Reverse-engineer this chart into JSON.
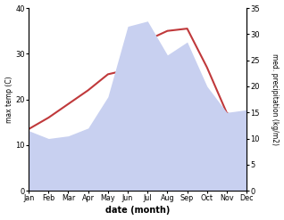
{
  "months": [
    "Jan",
    "Feb",
    "Mar",
    "Apr",
    "May",
    "Jun",
    "Jul",
    "Aug",
    "Sep",
    "Oct",
    "Nov",
    "Dec"
  ],
  "temp": [
    13.5,
    16.0,
    19.0,
    22.0,
    25.5,
    26.5,
    33.0,
    35.0,
    35.5,
    27.0,
    17.0,
    15.0
  ],
  "precip": [
    11.5,
    10.0,
    10.5,
    12.0,
    18.0,
    31.5,
    32.5,
    26.0,
    28.5,
    20.0,
    15.0,
    15.5
  ],
  "temp_color": "#c0393b",
  "precip_fill_color": "#c8d0f0",
  "temp_ylim": [
    0,
    40
  ],
  "precip_ylim": [
    0,
    35
  ],
  "temp_yticks": [
    0,
    10,
    20,
    30,
    40
  ],
  "precip_yticks": [
    0,
    5,
    10,
    15,
    20,
    25,
    30,
    35
  ],
  "xlabel": "date (month)",
  "ylabel_left": "max temp (C)",
  "ylabel_right": "med. precipitation (kg/m2)",
  "background_color": "#ffffff",
  "line_width": 1.5
}
